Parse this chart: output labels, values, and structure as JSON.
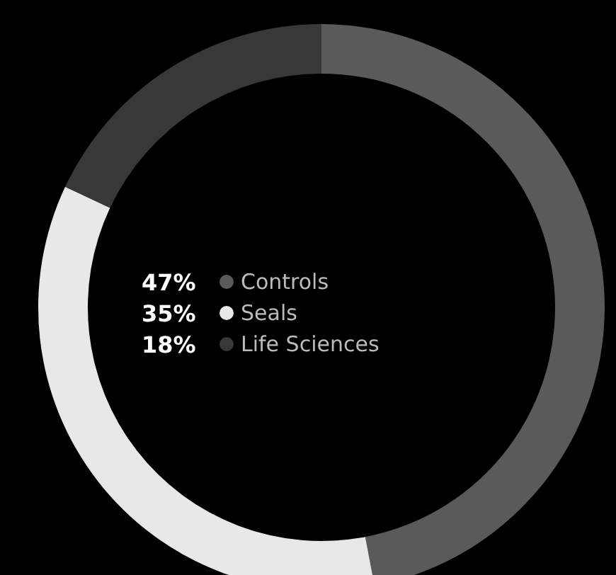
{
  "chart_data": {
    "type": "donut",
    "categories": [
      "Controls",
      "Seals",
      "Life Sciences"
    ],
    "values": [
      47,
      35,
      18
    ],
    "value_labels": [
      "47%",
      "35%",
      "18%"
    ],
    "colors": [
      "#5a5a5a",
      "#e8e8e8",
      "#383838"
    ],
    "legend": "center"
  }
}
